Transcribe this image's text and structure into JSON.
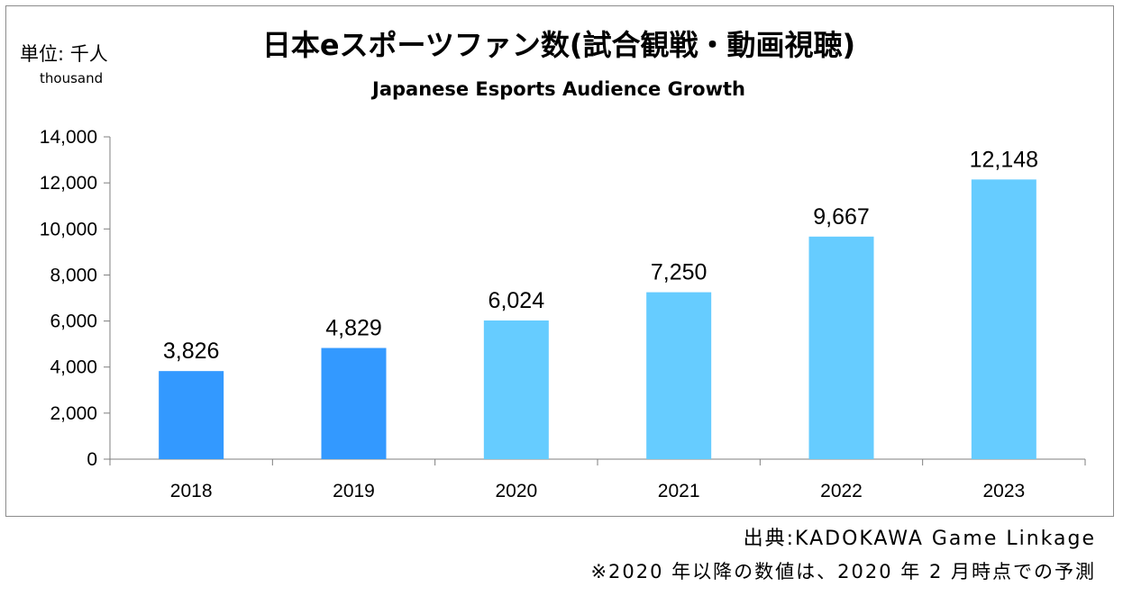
{
  "chart_data": {
    "type": "bar",
    "title": "日本eスポーツファン数(試合観戦・動画視聴)",
    "subtitle": "Japanese Esports Audience Growth",
    "unit_label": "単位: 千人",
    "unit_sublabel": "thousand",
    "xlabel": "",
    "ylabel": "",
    "categories": [
      "2018",
      "2019",
      "2020",
      "2021",
      "2022",
      "2023"
    ],
    "values": [
      3826,
      4829,
      6024,
      7250,
      9667,
      12148
    ],
    "data_labels": [
      "3,826",
      "4,829",
      "6,024",
      "7,250",
      "9,667",
      "12,148"
    ],
    "forecast": [
      false,
      false,
      true,
      true,
      true,
      true
    ],
    "ylim": [
      0,
      14000
    ],
    "yticks": [
      0,
      2000,
      4000,
      6000,
      8000,
      10000,
      12000,
      14000
    ],
    "ytick_labels": [
      "0",
      "2,000",
      "4,000",
      "6,000",
      "8,000",
      "10,000",
      "12,000",
      "14,000"
    ],
    "grid": false,
    "colors": {
      "actual": "#3399ff",
      "forecast": "#66ccff",
      "axis": "#7f7f7f"
    }
  },
  "footer": {
    "source": "出典:KADOKAWA Game Linkage",
    "note": "※2020 年以降の数値は、2020 年 2 月時点での予測"
  }
}
